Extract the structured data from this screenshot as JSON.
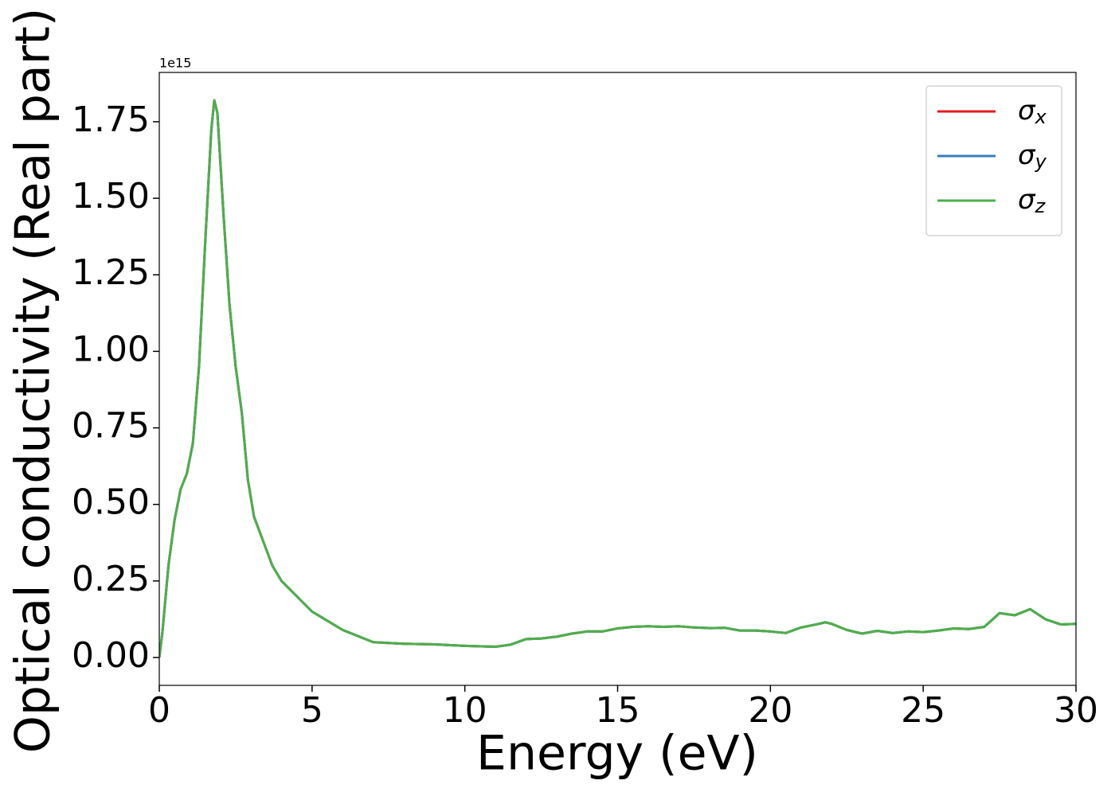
{
  "chart_data": {
    "type": "line",
    "xlabel": "Energy (eV)",
    "ylabel": "Optical conductivity (Real part)",
    "y_offset_label": "1e15",
    "x": [
      0,
      0.1,
      0.3,
      0.5,
      0.7,
      0.9,
      1.1,
      1.3,
      1.5,
      1.7,
      1.8,
      1.9,
      2.1,
      2.3,
      2.5,
      2.7,
      2.9,
      3.1,
      3.4,
      3.7,
      4.0,
      4.5,
      5.0,
      5.5,
      6.0,
      6.5,
      7.0,
      8.0,
      9.0,
      10.0,
      11.0,
      11.5,
      12.0,
      12.5,
      13.0,
      13.5,
      14.0,
      14.5,
      15.0,
      15.5,
      16.0,
      16.5,
      17.0,
      17.5,
      18.0,
      18.5,
      19.0,
      19.5,
      20.0,
      20.5,
      21.0,
      21.5,
      21.8,
      22.0,
      22.5,
      23.0,
      23.5,
      24.0,
      24.5,
      25.0,
      25.5,
      26.0,
      26.5,
      27.0,
      27.5,
      28.0,
      28.5,
      29.0,
      29.5,
      30.0
    ],
    "series": [
      {
        "name": "σx",
        "color": "#e41a1c",
        "values": [
          0.0,
          0.08,
          0.3,
          0.45,
          0.55,
          0.6,
          0.7,
          0.95,
          1.35,
          1.72,
          1.82,
          1.78,
          1.45,
          1.15,
          0.95,
          0.8,
          0.58,
          0.46,
          0.38,
          0.3,
          0.25,
          0.2,
          0.15,
          0.12,
          0.09,
          0.07,
          0.05,
          0.045,
          0.043,
          0.038,
          0.035,
          0.042,
          0.06,
          0.062,
          0.068,
          0.078,
          0.085,
          0.085,
          0.095,
          0.1,
          0.102,
          0.1,
          0.102,
          0.098,
          0.096,
          0.097,
          0.088,
          0.088,
          0.085,
          0.08,
          0.098,
          0.108,
          0.115,
          0.11,
          0.09,
          0.078,
          0.087,
          0.08,
          0.085,
          0.083,
          0.088,
          0.095,
          0.093,
          0.1,
          0.145,
          0.138,
          0.158,
          0.125,
          0.108,
          0.11
        ]
      },
      {
        "name": "σy",
        "color": "#377eb8",
        "values": [
          0.0,
          0.08,
          0.3,
          0.45,
          0.55,
          0.6,
          0.7,
          0.95,
          1.35,
          1.72,
          1.82,
          1.78,
          1.45,
          1.15,
          0.95,
          0.8,
          0.58,
          0.46,
          0.38,
          0.3,
          0.25,
          0.2,
          0.15,
          0.12,
          0.09,
          0.07,
          0.05,
          0.045,
          0.043,
          0.038,
          0.035,
          0.042,
          0.06,
          0.062,
          0.068,
          0.078,
          0.085,
          0.085,
          0.095,
          0.1,
          0.102,
          0.1,
          0.102,
          0.098,
          0.096,
          0.097,
          0.088,
          0.088,
          0.085,
          0.08,
          0.098,
          0.108,
          0.115,
          0.11,
          0.09,
          0.078,
          0.087,
          0.08,
          0.085,
          0.083,
          0.088,
          0.095,
          0.093,
          0.1,
          0.145,
          0.138,
          0.158,
          0.125,
          0.108,
          0.11
        ]
      },
      {
        "name": "σz",
        "color": "#4daf4a",
        "values": [
          0.0,
          0.08,
          0.3,
          0.45,
          0.55,
          0.6,
          0.7,
          0.95,
          1.35,
          1.72,
          1.82,
          1.78,
          1.45,
          1.15,
          0.95,
          0.8,
          0.58,
          0.46,
          0.38,
          0.3,
          0.25,
          0.2,
          0.15,
          0.12,
          0.09,
          0.07,
          0.05,
          0.045,
          0.043,
          0.038,
          0.035,
          0.042,
          0.06,
          0.062,
          0.068,
          0.078,
          0.085,
          0.085,
          0.095,
          0.1,
          0.102,
          0.1,
          0.102,
          0.098,
          0.096,
          0.097,
          0.088,
          0.088,
          0.085,
          0.08,
          0.098,
          0.108,
          0.115,
          0.11,
          0.09,
          0.078,
          0.087,
          0.08,
          0.085,
          0.083,
          0.088,
          0.095,
          0.093,
          0.1,
          0.145,
          0.138,
          0.158,
          0.125,
          0.108,
          0.11
        ]
      }
    ],
    "xlim": [
      0,
      30
    ],
    "xticks": [
      0,
      5,
      10,
      15,
      20,
      25,
      30
    ],
    "ylim": [
      -0.091,
      1.911
    ],
    "yticks": [
      {
        "value": 0,
        "label": "0.00"
      },
      0.25,
      {
        "value": 0.5,
        "label": "0.50"
      },
      0.75,
      {
        "value": 1,
        "label": "1.00"
      },
      1.25,
      {
        "value": 1.5,
        "label": "1.50"
      },
      1.75
    ],
    "legend": "upper right",
    "grid": false
  }
}
